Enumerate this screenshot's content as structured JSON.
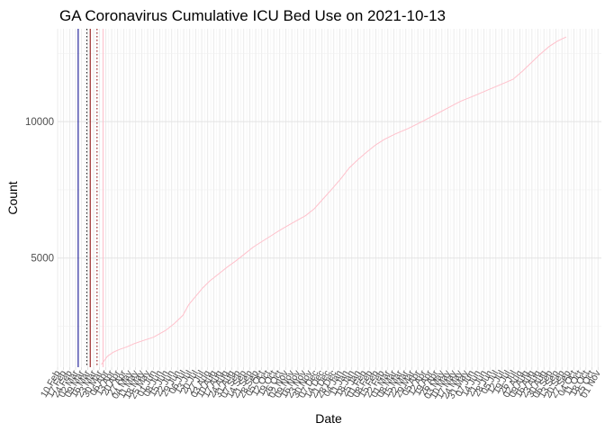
{
  "chart_data": {
    "type": "line",
    "title": "GA Coronavirus Cumulative ICU Bed Use on 2021-10-13",
    "xlabel": "Date",
    "ylabel": "Count",
    "x_range": [
      "2020-02-10",
      "2021-11-05"
    ],
    "ylim": [
      1000,
      13400
    ],
    "y_ticks": [
      5000,
      10000
    ],
    "grid": true,
    "series": [
      {
        "color": "#FFC0CB",
        "points": [
          [
            "2020-04-01",
            1100
          ],
          [
            "2020-04-08",
            1400
          ],
          [
            "2020-04-15",
            1550
          ],
          [
            "2020-04-22",
            1650
          ],
          [
            "2020-05-01",
            1750
          ],
          [
            "2020-05-10",
            1870
          ],
          [
            "2020-05-20",
            1980
          ],
          [
            "2020-06-01",
            2100
          ],
          [
            "2020-06-15",
            2350
          ],
          [
            "2020-06-25",
            2600
          ],
          [
            "2020-07-05",
            2900
          ],
          [
            "2020-07-12",
            3300
          ],
          [
            "2020-07-20",
            3600
          ],
          [
            "2020-07-28",
            3900
          ],
          [
            "2020-08-05",
            4150
          ],
          [
            "2020-08-15",
            4400
          ],
          [
            "2020-08-25",
            4650
          ],
          [
            "2020-09-05",
            4900
          ],
          [
            "2020-09-15",
            5150
          ],
          [
            "2020-09-25",
            5400
          ],
          [
            "2020-10-05",
            5600
          ],
          [
            "2020-10-15",
            5800
          ],
          [
            "2020-10-25",
            6000
          ],
          [
            "2020-11-05",
            6200
          ],
          [
            "2020-11-15",
            6380
          ],
          [
            "2020-11-25",
            6550
          ],
          [
            "2020-12-05",
            6800
          ],
          [
            "2020-12-15",
            7150
          ],
          [
            "2020-12-25",
            7500
          ],
          [
            "2021-01-05",
            7900
          ],
          [
            "2021-01-15",
            8300
          ],
          [
            "2021-01-25",
            8600
          ],
          [
            "2021-02-05",
            8900
          ],
          [
            "2021-02-15",
            9150
          ],
          [
            "2021-02-25",
            9350
          ],
          [
            "2021-03-10",
            9550
          ],
          [
            "2021-03-25",
            9750
          ],
          [
            "2021-04-10",
            10000
          ],
          [
            "2021-04-25",
            10250
          ],
          [
            "2021-05-10",
            10500
          ],
          [
            "2021-05-25",
            10750
          ],
          [
            "2021-06-10",
            10950
          ],
          [
            "2021-06-25",
            11150
          ],
          [
            "2021-07-10",
            11350
          ],
          [
            "2021-07-25",
            11550
          ],
          [
            "2021-08-05",
            11850
          ],
          [
            "2021-08-15",
            12150
          ],
          [
            "2021-08-25",
            12450
          ],
          [
            "2021-09-05",
            12750
          ],
          [
            "2021-09-15",
            12950
          ],
          [
            "2021-09-25",
            13100
          ]
        ]
      }
    ],
    "vertical_lines": [
      {
        "x": "2020-03-05",
        "color": "#00008B",
        "style": "solid"
      },
      {
        "x": "2020-03-15",
        "color": "#000000",
        "style": "dotted"
      },
      {
        "x": "2020-03-19",
        "color": "#8B0000",
        "style": "solid"
      },
      {
        "x": "2020-03-27",
        "color": "#8B0000",
        "style": "dotted"
      },
      {
        "x": "2020-04-03",
        "color": "#FFC0CB",
        "style": "solid"
      }
    ],
    "x_tick_labels": [
      "10 Feb",
      "17 Feb",
      "24 Feb",
      "02 Mar",
      "09 Mar",
      "16 Mar",
      "23 Mar",
      "30 Mar",
      "06 Apr",
      "13 Apr",
      "20 Apr",
      "27 Apr",
      "04 May",
      "11 May",
      "18 May",
      "25 May",
      "01 Jun",
      "08 Jun",
      "15 Jun",
      "22 Jun",
      "29 Jun",
      "06 Jul",
      "13 Jul",
      "20 Jul",
      "27 Jul",
      "03 Aug",
      "10 Aug",
      "17 Aug",
      "24 Aug",
      "31 Aug",
      "07 Sep",
      "14 Sep",
      "21 Sep",
      "28 Sep",
      "05 Oct",
      "12 Oct",
      "19 Oct",
      "26 Oct",
      "02 Nov",
      "09 Nov",
      "16 Nov",
      "23 Nov",
      "30 Nov",
      "07 Dec",
      "14 Dec",
      "21 Dec",
      "28 Dec",
      "04 Jan",
      "11 Jan",
      "18 Jan",
      "25 Jan",
      "01 Feb",
      "08 Feb",
      "15 Feb",
      "22 Feb",
      "01 Mar",
      "08 Mar",
      "15 Mar",
      "22 Mar",
      "29 Mar",
      "05 Apr",
      "12 Apr",
      "19 Apr",
      "26 Apr",
      "03 May",
      "10 May",
      "17 May",
      "24 May",
      "31 May",
      "07 Jun",
      "14 Jun",
      "21 Jun",
      "28 Jun",
      "05 Jul",
      "12 Jul",
      "19 Jul",
      "26 Jul",
      "02 Aug",
      "09 Aug",
      "16 Aug",
      "23 Aug",
      "30 Aug",
      "06 Sep",
      "13 Sep",
      "20 Sep",
      "27 Sep",
      "04 Oct",
      "11 Oct",
      "18 Oct",
      "25 Oct",
      "01 Nov"
    ]
  }
}
